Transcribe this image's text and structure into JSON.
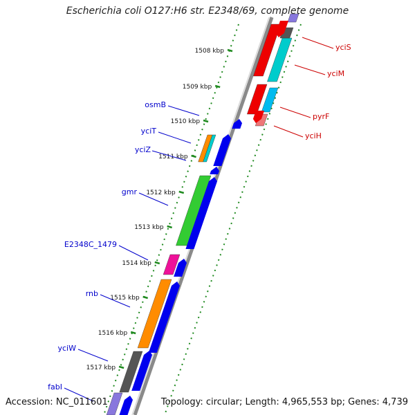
{
  "title": "Escherichia coli O127:H6 str. E2348/69, complete genome",
  "footer": {
    "accession": "Accession: NC_011601",
    "summary": "Topology: circular; Length: 4,965,553 bp; Genes: 4,739"
  },
  "colors": {
    "backbone": "#8a8a8a",
    "tick": "#1f8a1f",
    "forward_label": "#0000cc",
    "reverse_label": "#cc0000",
    "forward_arrow": "#0000ee",
    "reverse_arrow": "#ee0000"
  },
  "ticks": [
    "1508 kbp",
    "1509 kbp",
    "1510 kbp",
    "1511 kbp",
    "1512 kbp",
    "1513 kbp",
    "1514 kbp",
    "1515 kbp",
    "1516 kbp",
    "1517 kbp"
  ],
  "genes_forward": [
    {
      "name": "osmB",
      "color": "#0000ee"
    },
    {
      "name": "yciT",
      "color": "#ff8c00"
    },
    {
      "name": "yciZ",
      "color": "#0000ee"
    },
    {
      "name": "gmr",
      "color": "#33cc33"
    },
    {
      "name": "E2348C_1479",
      "color": "#ee1199"
    },
    {
      "name": "rnb",
      "color": "#ff8c00"
    },
    {
      "name": "yciW",
      "color": "#555555"
    },
    {
      "name": "fabI",
      "color": "#8877dd"
    }
  ],
  "genes_reverse": [
    {
      "name": "yciS",
      "color": "#ee0000"
    },
    {
      "name": "yciM",
      "color": "#00cccc"
    },
    {
      "name": "pyrF",
      "color": "#00bbee"
    },
    {
      "name": "yciH",
      "color": "#ee7777"
    }
  ]
}
